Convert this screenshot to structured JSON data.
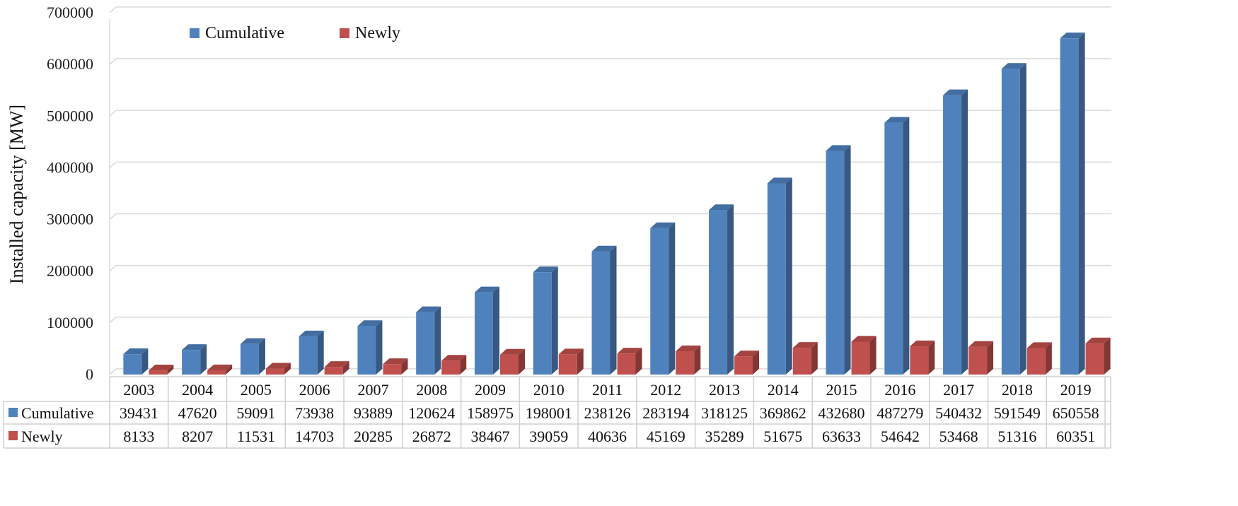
{
  "chart_data": {
    "type": "bar",
    "ylabel": "Installed capacity [MW]",
    "ylim": [
      0,
      700000
    ],
    "yticks": [
      "0",
      "100000",
      "200000",
      "300000",
      "400000",
      "500000",
      "600000",
      "700000"
    ],
    "grid": true,
    "legend_position": "top-left",
    "categories": [
      "2003",
      "2004",
      "2005",
      "2006",
      "2007",
      "2008",
      "2009",
      "2010",
      "2011",
      "2012",
      "2013",
      "2014",
      "2015",
      "2016",
      "2017",
      "2018",
      "2019"
    ],
    "series": [
      {
        "name": "Cumulative",
        "color": "#4f81bd",
        "values": [
          39431,
          47620,
          59091,
          73938,
          93889,
          120624,
          158975,
          198001,
          238126,
          283194,
          318125,
          369862,
          432680,
          487279,
          540432,
          591549,
          650558
        ]
      },
      {
        "name": "Newly",
        "color": "#c0504d",
        "values": [
          8133,
          8207,
          11531,
          14703,
          20285,
          26872,
          38467,
          39059,
          40636,
          45169,
          35289,
          51675,
          63633,
          54642,
          53468,
          51316,
          60351
        ]
      }
    ],
    "data_table": true
  }
}
